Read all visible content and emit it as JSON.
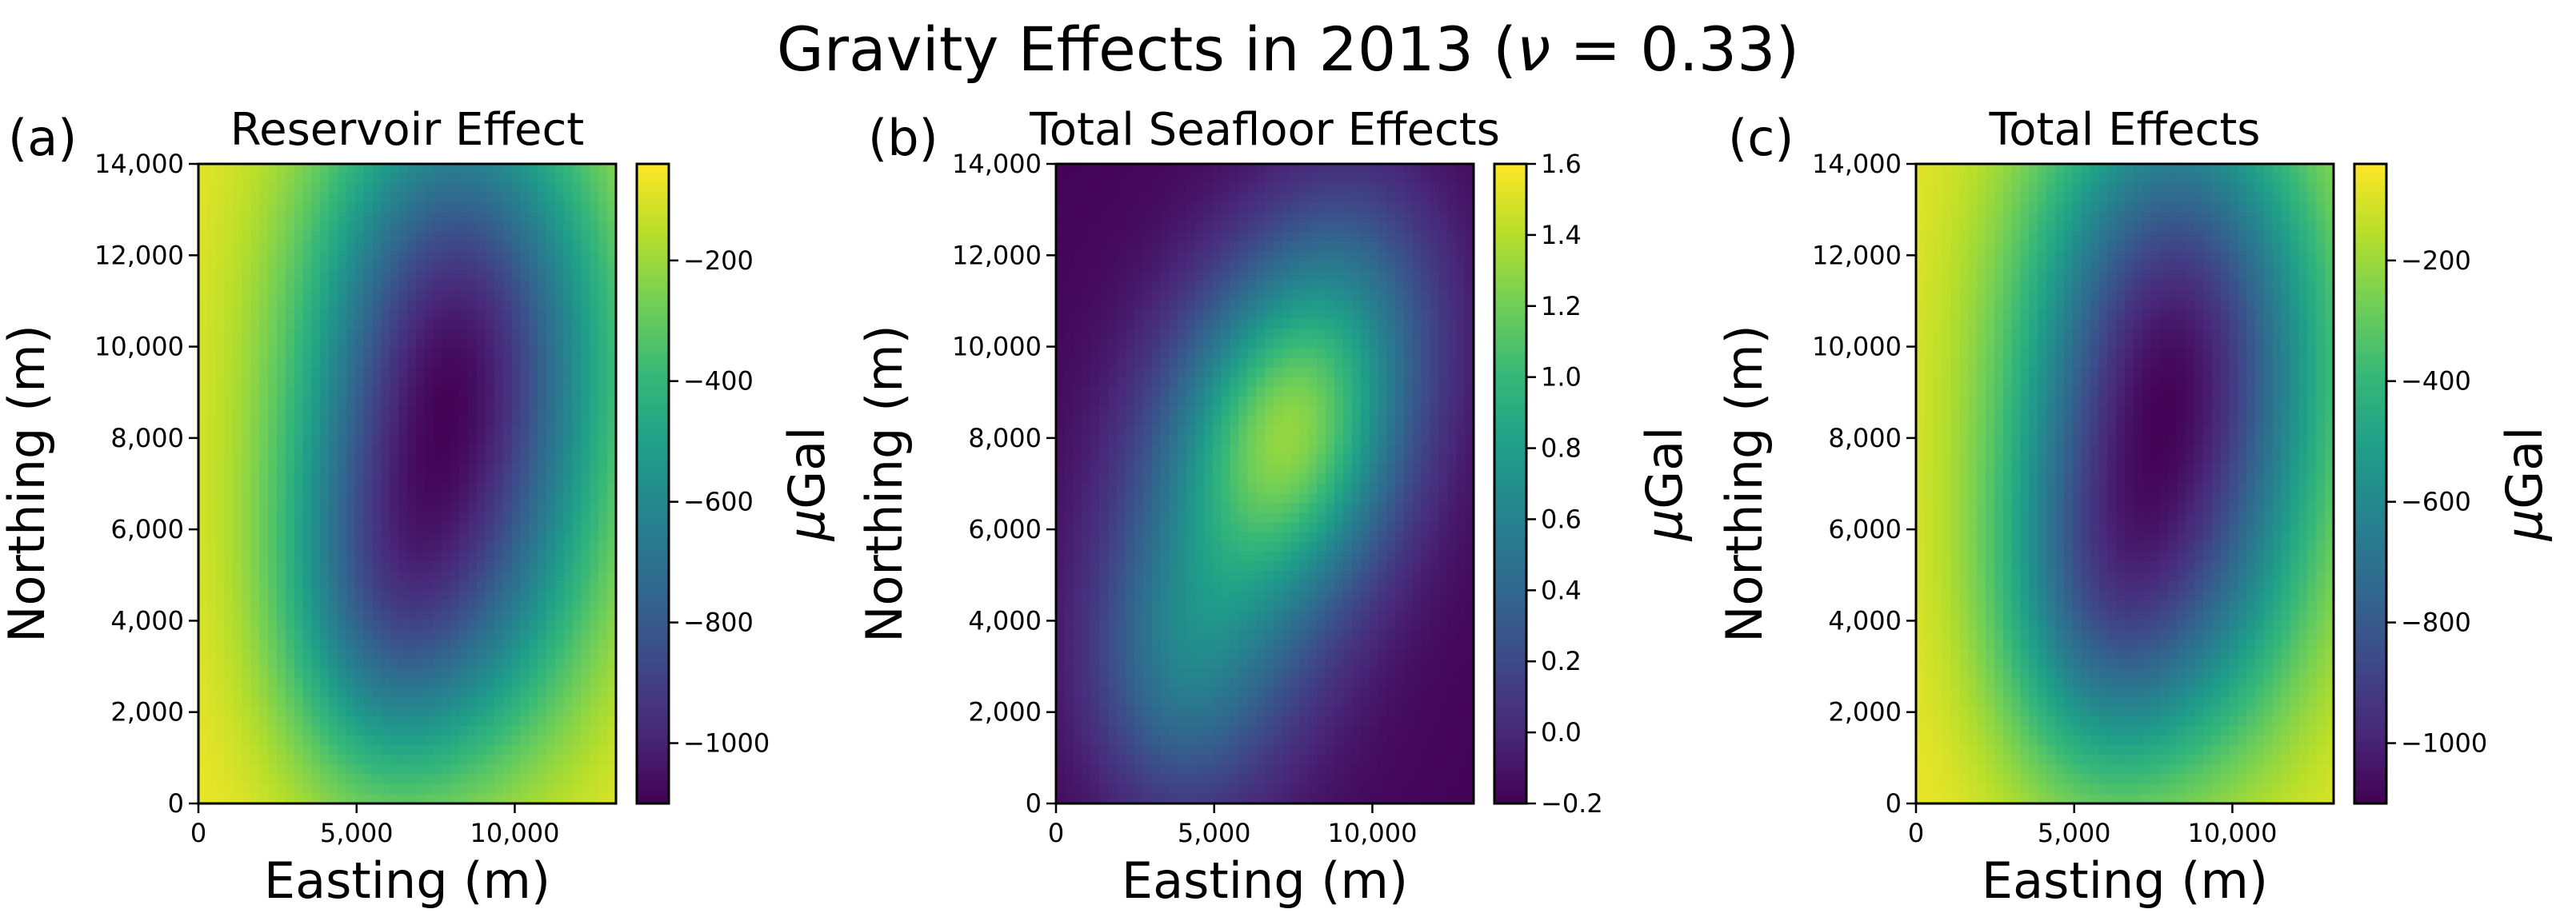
{
  "figure": {
    "title_prefix": "Gravity Effects in 2013 (",
    "title_greek": "ν",
    "title_suffix": " = 0.33)"
  },
  "colorscale": [
    "#440154",
    "#482878",
    "#3e4989",
    "#31688e",
    "#26828e",
    "#1f9e89",
    "#35b779",
    "#6ece58",
    "#b5de2b",
    "#fde725"
  ],
  "chart_data": [
    {
      "type": "heatmap",
      "panel_label": "(a)",
      "title": "Reservoir Effect",
      "xlabel": "Easting (m)",
      "ylabel": "Northing (m)",
      "xlim": [
        0,
        13200
      ],
      "ylim": [
        0,
        14000
      ],
      "xticks": [
        0,
        5000,
        10000
      ],
      "xtick_labels": [
        "0",
        "5,000",
        "10,000"
      ],
      "yticks": [
        0,
        2000,
        4000,
        6000,
        8000,
        10000,
        12000,
        14000
      ],
      "ytick_labels": [
        "0",
        "2,000",
        "4,000",
        "6,000",
        "8,000",
        "10,000",
        "12,000",
        "14,000"
      ],
      "colorbar": {
        "label_greek": "μ",
        "label_text": "Gal",
        "vmin": -1100,
        "vmax": -40,
        "ticks": [
          -1000,
          -800,
          -600,
          -400,
          -200
        ],
        "tick_labels": [
          "−1000",
          "−800",
          "−600",
          "−400",
          "−200"
        ]
      },
      "field": {
        "base": -60,
        "edge_effect": {
          "x_center": 0,
          "x_width": 3000,
          "y_center": 14000,
          "y_width": 3000,
          "amplitude": 0
        },
        "components": [
          {
            "x": 8200,
            "y": 9800,
            "sx": 3300,
            "sy": 4200,
            "amp": -950
          },
          {
            "x": 5500,
            "y": 4200,
            "sx": 2300,
            "sy": 3000,
            "amp": -420
          },
          {
            "x": 9000,
            "y": 3800,
            "sx": 2600,
            "sy": 2800,
            "amp": -200
          }
        ]
      }
    },
    {
      "type": "heatmap",
      "panel_label": "(b)",
      "title": "Total Seafloor Effects",
      "xlabel": "Easting (m)",
      "ylabel": "Northing (m)",
      "xlim": [
        0,
        13200
      ],
      "ylim": [
        0,
        14000
      ],
      "xticks": [
        0,
        5000,
        10000
      ],
      "xtick_labels": [
        "0",
        "5,000",
        "10,000"
      ],
      "yticks": [
        0,
        2000,
        4000,
        6000,
        8000,
        10000,
        12000,
        14000
      ],
      "ytick_labels": [
        "0",
        "2,000",
        "4,000",
        "6,000",
        "8,000",
        "10,000",
        "12,000",
        "14,000"
      ],
      "colorbar": {
        "label_greek": "μ",
        "label_text": "Gal",
        "vmin": -0.2,
        "vmax": 1.6,
        "ticks": [
          -0.2,
          0.0,
          0.2,
          0.4,
          0.6,
          0.8,
          1.0,
          1.2,
          1.4,
          1.6
        ],
        "tick_labels": [
          "−0.2",
          "0.0",
          "0.2",
          "0.4",
          "0.6",
          "0.8",
          "1.0",
          "1.2",
          "1.4",
          "1.6"
        ]
      },
      "field": {
        "base": -0.18,
        "components": [
          {
            "x": 7500,
            "y": 8200,
            "sx": 2400,
            "sy": 2400,
            "amp": 1.15
          },
          {
            "x": 5200,
            "y": 5000,
            "sx": 2500,
            "sy": 3000,
            "amp": 0.6
          },
          {
            "x": 9500,
            "y": 11200,
            "sx": 2200,
            "sy": 2200,
            "amp": 0.4
          },
          {
            "x": 3600,
            "y": 2600,
            "sx": 1900,
            "sy": 2100,
            "amp": 0.35
          }
        ]
      }
    },
    {
      "type": "heatmap",
      "panel_label": "(c)",
      "title": "Total Effects",
      "xlabel": "Easting (m)",
      "ylabel": "Northing (m)",
      "xlim": [
        0,
        13200
      ],
      "ylim": [
        0,
        14000
      ],
      "xticks": [
        0,
        5000,
        10000
      ],
      "xtick_labels": [
        "0",
        "5,000",
        "10,000"
      ],
      "yticks": [
        0,
        2000,
        4000,
        6000,
        8000,
        10000,
        12000,
        14000
      ],
      "ytick_labels": [
        "0",
        "2,000",
        "4,000",
        "6,000",
        "8,000",
        "10,000",
        "12,000",
        "14,000"
      ],
      "colorbar": {
        "label_greek": "μ",
        "label_text": "Gal",
        "vmin": -1100,
        "vmax": -40,
        "ticks": [
          -1000,
          -800,
          -600,
          -400,
          -200
        ],
        "tick_labels": [
          "−1000",
          "−800",
          "−600",
          "−400",
          "−200"
        ]
      },
      "field": {
        "base": -60,
        "components": [
          {
            "x": 8200,
            "y": 9800,
            "sx": 3300,
            "sy": 4200,
            "amp": -950
          },
          {
            "x": 5500,
            "y": 4200,
            "sx": 2300,
            "sy": 3000,
            "amp": -420
          },
          {
            "x": 9000,
            "y": 3800,
            "sx": 2600,
            "sy": 2800,
            "amp": -200
          }
        ]
      }
    }
  ]
}
